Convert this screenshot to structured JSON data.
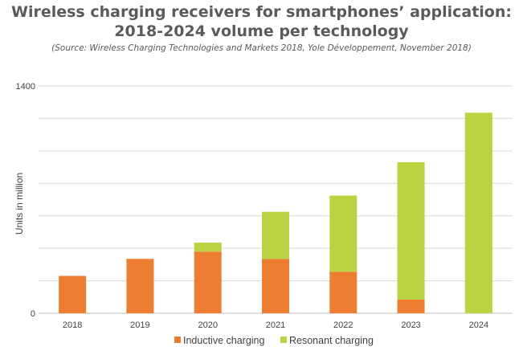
{
  "chart_data": {
    "type": "bar",
    "stacked": true,
    "title_line1": "Wireless charging receivers for smartphones’ application:",
    "title_line2": "2018-2024 volume per technology",
    "subtitle": "(Source: Wireless Charging Technologies and Markets 2018, Yole Développement, November 2018)",
    "xlabel": "",
    "ylabel": "Units in million",
    "ylim": [
      0,
      1400
    ],
    "yticks_labeled": [
      0,
      1400
    ],
    "grid_step": 200,
    "grid": true,
    "categories": [
      "2018",
      "2019",
      "2020",
      "2021",
      "2022",
      "2023",
      "2024"
    ],
    "series": [
      {
        "name": "Inductive charging",
        "color": "#ED7D31",
        "values": [
          230,
          335,
          380,
          335,
          255,
          85,
          0
        ]
      },
      {
        "name": "Resonant charging",
        "color": "#B9D342",
        "values": [
          0,
          0,
          55,
          290,
          470,
          845,
          1235
        ]
      }
    ],
    "legend_position": "bottom"
  }
}
